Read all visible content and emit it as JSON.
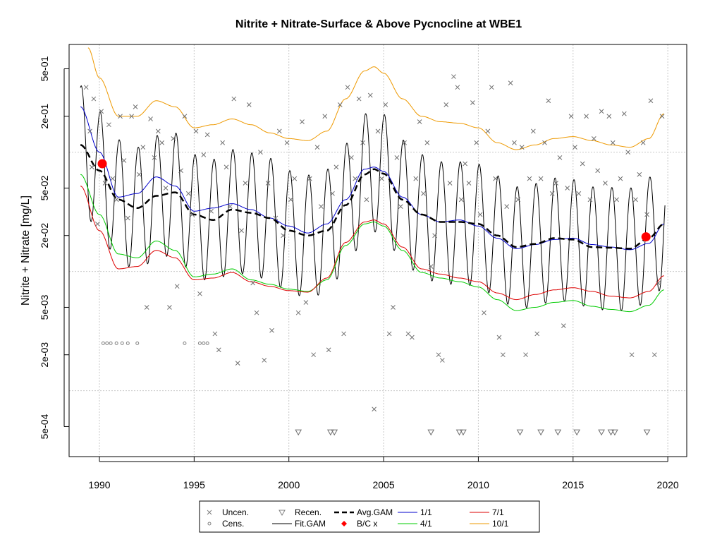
{
  "chart_data": {
    "type": "line",
    "title": "Nitrite + Nitrate-Surface & Above Pycnocline at WBE1",
    "xlabel": "",
    "ylabel": "Nitrite + Nitrate [mg/L]",
    "x_range": [
      1988.4,
      2021.0
    ],
    "y_scale": "log",
    "ylim": [
      0.00028,
      0.8
    ],
    "x_ticks": [
      1990,
      1995,
      2000,
      2005,
      2010,
      2015,
      2020
    ],
    "x_tick_labels": [
      "1990",
      "1995",
      "2000",
      "2005",
      "2010",
      "2015",
      "2020"
    ],
    "y_ticks": [
      0.0005,
      0.002,
      0.005,
      0.02,
      0.05,
      0.2,
      0.5
    ],
    "y_tick_labels": [
      "5e-04",
      "2e-03",
      "5e-03",
      "2e-02",
      "5e-02",
      "2e-01",
      "5e-01"
    ],
    "grid": "dotted at decades",
    "legend_position": "bottom",
    "legend": [
      {
        "key": "uncen",
        "label": "Uncen.",
        "symbol": "x",
        "color": "#808080"
      },
      {
        "key": "cens",
        "label": "Cens.",
        "symbol": "circle",
        "color": "#808080"
      },
      {
        "key": "recen",
        "label": "Recen.",
        "symbol": "triangle-down",
        "color": "#808080"
      },
      {
        "key": "fitgam",
        "label": "Fit.GAM",
        "symbol": "line",
        "color": "#000000"
      },
      {
        "key": "avggam",
        "label": "Avg.GAM",
        "symbol": "dashed-line",
        "color": "#000000"
      },
      {
        "key": "bc",
        "label": "B/C x",
        "symbol": "dot",
        "color": "#ff0000"
      },
      {
        "key": "s11",
        "label": "1/1",
        "symbol": "line",
        "color": "#0000cc"
      },
      {
        "key": "s41",
        "label": "4/1",
        "symbol": "line",
        "color": "#00cc00"
      },
      {
        "key": "s71",
        "label": "7/1",
        "symbol": "line",
        "color": "#dd0000"
      },
      {
        "key": "s101",
        "label": "10/1",
        "symbol": "line",
        "color": "#ee9900"
      }
    ],
    "series": [
      {
        "key": "avggam",
        "name": "Avg.GAM",
        "style": "dashed",
        "color": "#000000",
        "x": [
          1989.0,
          1990.0,
          1991.0,
          1992.0,
          1993.0,
          1994.0,
          1995.0,
          1996.0,
          1997.0,
          1998.0,
          1999.0,
          2000.0,
          2001.0,
          2002.0,
          2003.0,
          2004.0,
          2004.5,
          2005.0,
          2006.0,
          2007.0,
          2008.0,
          2009.0,
          2010.0,
          2011.0,
          2012.0,
          2013.0,
          2014.0,
          2015.0,
          2016.0,
          2017.0,
          2018.0,
          2019.0,
          2019.8
        ],
        "y": [
          0.115,
          0.07,
          0.04,
          0.034,
          0.043,
          0.046,
          0.03,
          0.027,
          0.033,
          0.031,
          0.028,
          0.022,
          0.02,
          0.022,
          0.036,
          0.065,
          0.072,
          0.066,
          0.04,
          0.03,
          0.026,
          0.026,
          0.025,
          0.02,
          0.016,
          0.017,
          0.019,
          0.0185,
          0.016,
          0.0158,
          0.0155,
          0.019,
          0.025
        ]
      },
      {
        "key": "s11",
        "name": "1/1",
        "style": "solid",
        "color": "#0000cc",
        "x": [
          1989.0,
          1990.0,
          1991.0,
          1992.0,
          1993.0,
          1994.0,
          1995.0,
          1996.0,
          1997.0,
          1998.0,
          1999.0,
          2000.0,
          2001.0,
          2002.0,
          2003.0,
          2004.0,
          2004.5,
          2005.0,
          2006.0,
          2007.0,
          2008.0,
          2009.0,
          2010.0,
          2011.0,
          2012.0,
          2013.0,
          2014.0,
          2015.0,
          2016.0,
          2017.0,
          2018.0,
          2019.0,
          2019.8
        ],
        "y": [
          0.24,
          0.1,
          0.042,
          0.045,
          0.062,
          0.052,
          0.032,
          0.034,
          0.037,
          0.033,
          0.028,
          0.024,
          0.021,
          0.025,
          0.04,
          0.072,
          0.075,
          0.069,
          0.042,
          0.03,
          0.026,
          0.027,
          0.024,
          0.019,
          0.0155,
          0.0168,
          0.0185,
          0.019,
          0.0168,
          0.016,
          0.0152,
          0.0172,
          0.025
        ]
      },
      {
        "key": "s41",
        "name": "4/1",
        "style": "solid",
        "color": "#00cc00",
        "x": [
          1989.0,
          1990.0,
          1991.0,
          1992.0,
          1993.0,
          1994.0,
          1995.0,
          1996.0,
          1997.0,
          1998.0,
          1999.0,
          2000.0,
          2001.0,
          2002.0,
          2003.0,
          2004.0,
          2004.5,
          2005.0,
          2006.0,
          2007.0,
          2008.0,
          2009.0,
          2010.0,
          2011.0,
          2012.0,
          2013.0,
          2014.0,
          2015.0,
          2016.0,
          2017.0,
          2018.0,
          2019.0,
          2019.8
        ],
        "y": [
          0.065,
          0.03,
          0.014,
          0.013,
          0.018,
          0.015,
          0.009,
          0.0095,
          0.0105,
          0.0085,
          0.0078,
          0.0071,
          0.0068,
          0.0085,
          0.0165,
          0.025,
          0.026,
          0.024,
          0.015,
          0.0098,
          0.0088,
          0.0082,
          0.0074,
          0.0058,
          0.0047,
          0.005,
          0.0055,
          0.0057,
          0.0051,
          0.0048,
          0.0046,
          0.0052,
          0.007
        ]
      },
      {
        "key": "s71",
        "name": "7/1",
        "style": "solid",
        "color": "#dd0000",
        "x": [
          1989.0,
          1990.0,
          1991.0,
          1992.0,
          1993.0,
          1994.0,
          1995.0,
          1996.0,
          1997.0,
          1998.0,
          1999.0,
          2000.0,
          2001.0,
          2002.0,
          2003.0,
          2004.0,
          2004.5,
          2005.0,
          2006.0,
          2007.0,
          2008.0,
          2009.0,
          2010.0,
          2011.0,
          2012.0,
          2013.0,
          2014.0,
          2015.0,
          2016.0,
          2017.0,
          2018.0,
          2019.0,
          2019.8
        ],
        "y": [
          0.052,
          0.022,
          0.0105,
          0.011,
          0.015,
          0.013,
          0.0085,
          0.0088,
          0.0098,
          0.0082,
          0.0075,
          0.0069,
          0.0067,
          0.0088,
          0.0175,
          0.026,
          0.027,
          0.025,
          0.016,
          0.0105,
          0.0095,
          0.0088,
          0.0082,
          0.0066,
          0.0058,
          0.0064,
          0.007,
          0.0073,
          0.0068,
          0.0062,
          0.006,
          0.0068,
          0.0092
        ]
      },
      {
        "key": "s101",
        "name": "10/1",
        "style": "solid",
        "color": "#ee9900",
        "x": [
          1989.4,
          1990.0,
          1991.0,
          1992.0,
          1993.0,
          1994.0,
          1995.0,
          1996.0,
          1997.0,
          1998.0,
          1999.0,
          2000.0,
          2001.0,
          2002.0,
          2003.0,
          2004.0,
          2004.5,
          2005.0,
          2006.0,
          2007.0,
          2008.0,
          2009.0,
          2010.0,
          2011.0,
          2012.0,
          2013.0,
          2014.0,
          2015.0,
          2016.0,
          2017.0,
          2018.0,
          2019.0,
          2019.8
        ],
        "y": [
          0.75,
          0.42,
          0.2,
          0.2,
          0.27,
          0.24,
          0.16,
          0.17,
          0.19,
          0.17,
          0.145,
          0.13,
          0.125,
          0.15,
          0.28,
          0.48,
          0.52,
          0.46,
          0.28,
          0.2,
          0.18,
          0.175,
          0.16,
          0.12,
          0.105,
          0.115,
          0.13,
          0.135,
          0.125,
          0.115,
          0.11,
          0.13,
          0.21
        ]
      }
    ],
    "fit_gam": {
      "label": "Fit.GAM",
      "description_values": {
        "winter_peak_multiplier": 3.2,
        "summer_trough_multiplier": 0.3
      }
    },
    "bc_points": [
      {
        "x": 1990.15,
        "y": 0.08
      },
      {
        "x": 2018.85,
        "y": 0.0195
      }
    ],
    "uncensored": [
      [
        1989.3,
        0.35
      ],
      [
        1989.5,
        0.15
      ],
      [
        1989.6,
        0.075
      ],
      [
        1989.7,
        0.28
      ],
      [
        1989.9,
        0.025
      ],
      [
        1990.1,
        0.22
      ],
      [
        1990.3,
        0.055
      ],
      [
        1990.5,
        0.17
      ],
      [
        1990.7,
        0.06
      ],
      [
        1990.9,
        0.04
      ],
      [
        1991.1,
        0.2
      ],
      [
        1991.3,
        0.085
      ],
      [
        1991.5,
        0.028
      ],
      [
        1991.7,
        0.2
      ],
      [
        1991.9,
        0.24
      ],
      [
        1992.1,
        0.065
      ],
      [
        1992.3,
        0.11
      ],
      [
        1992.5,
        0.005
      ],
      [
        1992.7,
        0.19
      ],
      [
        1992.9,
        0.09
      ],
      [
        1993.1,
        0.15
      ],
      [
        1993.3,
        0.12
      ],
      [
        1993.5,
        0.05
      ],
      [
        1993.7,
        0.005
      ],
      [
        1993.9,
        0.13
      ],
      [
        1994.1,
        0.0075
      ],
      [
        1994.3,
        0.07
      ],
      [
        1994.5,
        0.2
      ],
      [
        1994.7,
        0.045
      ],
      [
        1994.9,
        0.03
      ],
      [
        1995.1,
        0.15
      ],
      [
        1995.3,
        0.0065
      ],
      [
        1995.5,
        0.095
      ],
      [
        1995.7,
        0.14
      ],
      [
        1995.9,
        0.032
      ],
      [
        1996.1,
        0.003
      ],
      [
        1996.3,
        0.0022
      ],
      [
        1996.5,
        0.12
      ],
      [
        1996.7,
        0.075
      ],
      [
        1996.9,
        0.035
      ],
      [
        1997.1,
        0.28
      ],
      [
        1997.3,
        0.0017
      ],
      [
        1997.5,
        0.022
      ],
      [
        1997.7,
        0.055
      ],
      [
        1997.9,
        0.25
      ],
      [
        1998.1,
        0.008
      ],
      [
        1998.3,
        0.0045
      ],
      [
        1998.5,
        0.1
      ],
      [
        1998.7,
        0.0018
      ],
      [
        1998.9,
        0.055
      ],
      [
        1999.1,
        0.0032
      ],
      [
        1999.3,
        0.028
      ],
      [
        1999.5,
        0.15
      ],
      [
        1999.7,
        0.02
      ],
      [
        1999.9,
        0.12
      ],
      [
        2000.1,
        0.04
      ],
      [
        2000.3,
        0.06
      ],
      [
        2000.5,
        0.0045
      ],
      [
        2000.7,
        0.18
      ],
      [
        2000.9,
        0.0055
      ],
      [
        2001.1,
        0.06
      ],
      [
        2001.3,
        0.002
      ],
      [
        2001.5,
        0.11
      ],
      [
        2001.7,
        0.035
      ],
      [
        2001.9,
        0.2
      ],
      [
        2002.1,
        0.0022
      ],
      [
        2002.3,
        0.045
      ],
      [
        2002.5,
        0.075
      ],
      [
        2002.7,
        0.25
      ],
      [
        2002.9,
        0.003
      ],
      [
        2003.1,
        0.35
      ],
      [
        2003.3,
        0.09
      ],
      [
        2003.5,
        0.06
      ],
      [
        2003.7,
        0.28
      ],
      [
        2003.9,
        0.12
      ],
      [
        2004.1,
        0.04
      ],
      [
        2004.3,
        0.3
      ],
      [
        2004.5,
        0.0007
      ],
      [
        2004.7,
        0.15
      ],
      [
        2004.9,
        0.06
      ],
      [
        2005.1,
        0.25
      ],
      [
        2005.3,
        0.003
      ],
      [
        2005.5,
        0.005
      ],
      [
        2005.7,
        0.09
      ],
      [
        2005.9,
        0.035
      ],
      [
        2006.1,
        0.12
      ],
      [
        2006.3,
        0.003
      ],
      [
        2006.5,
        0.0028
      ],
      [
        2006.7,
        0.06
      ],
      [
        2006.9,
        0.18
      ],
      [
        2007.1,
        0.045
      ],
      [
        2007.3,
        0.12
      ],
      [
        2007.5,
        0.011
      ],
      [
        2007.7,
        0.02
      ],
      [
        2007.9,
        0.002
      ],
      [
        2008.1,
        0.0018
      ],
      [
        2008.3,
        0.25
      ],
      [
        2008.5,
        0.055
      ],
      [
        2008.7,
        0.43
      ],
      [
        2008.9,
        0.35
      ],
      [
        2009.1,
        0.04
      ],
      [
        2009.3,
        0.08
      ],
      [
        2009.5,
        0.055
      ],
      [
        2009.7,
        0.26
      ],
      [
        2009.9,
        0.12
      ],
      [
        2010.1,
        0.03
      ],
      [
        2010.3,
        0.0045
      ],
      [
        2010.5,
        0.15
      ],
      [
        2010.7,
        0.35
      ],
      [
        2010.9,
        0.06
      ],
      [
        2011.1,
        0.0028
      ],
      [
        2011.3,
        0.002
      ],
      [
        2011.5,
        0.035
      ],
      [
        2011.7,
        0.38
      ],
      [
        2011.9,
        0.12
      ],
      [
        2012.1,
        0.04
      ],
      [
        2012.3,
        0.11
      ],
      [
        2012.5,
        0.002
      ],
      [
        2012.7,
        0.06
      ],
      [
        2012.9,
        0.15
      ],
      [
        2013.1,
        0.003
      ],
      [
        2013.3,
        0.06
      ],
      [
        2013.5,
        0.12
      ],
      [
        2013.7,
        0.27
      ],
      [
        2013.9,
        0.045
      ],
      [
        2014.1,
        0.055
      ],
      [
        2014.3,
        0.09
      ],
      [
        2014.5,
        0.0035
      ],
      [
        2014.7,
        0.05
      ],
      [
        2014.9,
        0.2
      ],
      [
        2015.1,
        0.11
      ],
      [
        2015.3,
        0.045
      ],
      [
        2015.5,
        0.08
      ],
      [
        2015.7,
        0.2
      ],
      [
        2015.9,
        0.04
      ],
      [
        2016.1,
        0.13
      ],
      [
        2016.3,
        0.07
      ],
      [
        2016.5,
        0.22
      ],
      [
        2016.7,
        0.055
      ],
      [
        2016.9,
        0.2
      ],
      [
        2017.1,
        0.12
      ],
      [
        2017.3,
        0.04
      ],
      [
        2017.5,
        0.06
      ],
      [
        2017.7,
        0.21
      ],
      [
        2017.9,
        0.1
      ],
      [
        2018.1,
        0.002
      ],
      [
        2018.3,
        0.04
      ],
      [
        2018.5,
        0.065
      ],
      [
        2018.7,
        0.12
      ],
      [
        2018.9,
        0.03
      ],
      [
        2019.1,
        0.27
      ],
      [
        2019.3,
        0.002
      ],
      [
        2019.5,
        0.008
      ],
      [
        2019.7,
        0.2
      ]
    ],
    "censored": [
      [
        1990.2,
        0.0025
      ],
      [
        1990.4,
        0.0025
      ],
      [
        1990.6,
        0.0025
      ],
      [
        1990.9,
        0.0025
      ],
      [
        1991.2,
        0.0025
      ],
      [
        1991.5,
        0.0025
      ],
      [
        1992.0,
        0.0025
      ],
      [
        1994.5,
        0.0025
      ],
      [
        1995.3,
        0.0025
      ],
      [
        1995.5,
        0.0025
      ],
      [
        1995.7,
        0.0025
      ]
    ],
    "recensored": [
      [
        2000.5,
        0.00045
      ],
      [
        2002.2,
        0.00045
      ],
      [
        2002.4,
        0.00045
      ],
      [
        2007.5,
        0.00045
      ],
      [
        2009.0,
        0.00045
      ],
      [
        2009.2,
        0.00045
      ],
      [
        2012.2,
        0.00045
      ],
      [
        2013.3,
        0.00045
      ],
      [
        2014.2,
        0.00045
      ],
      [
        2015.2,
        0.00045
      ],
      [
        2016.5,
        0.00045
      ],
      [
        2017.0,
        0.00045
      ],
      [
        2017.2,
        0.00045
      ],
      [
        2018.9,
        0.00045
      ]
    ]
  }
}
